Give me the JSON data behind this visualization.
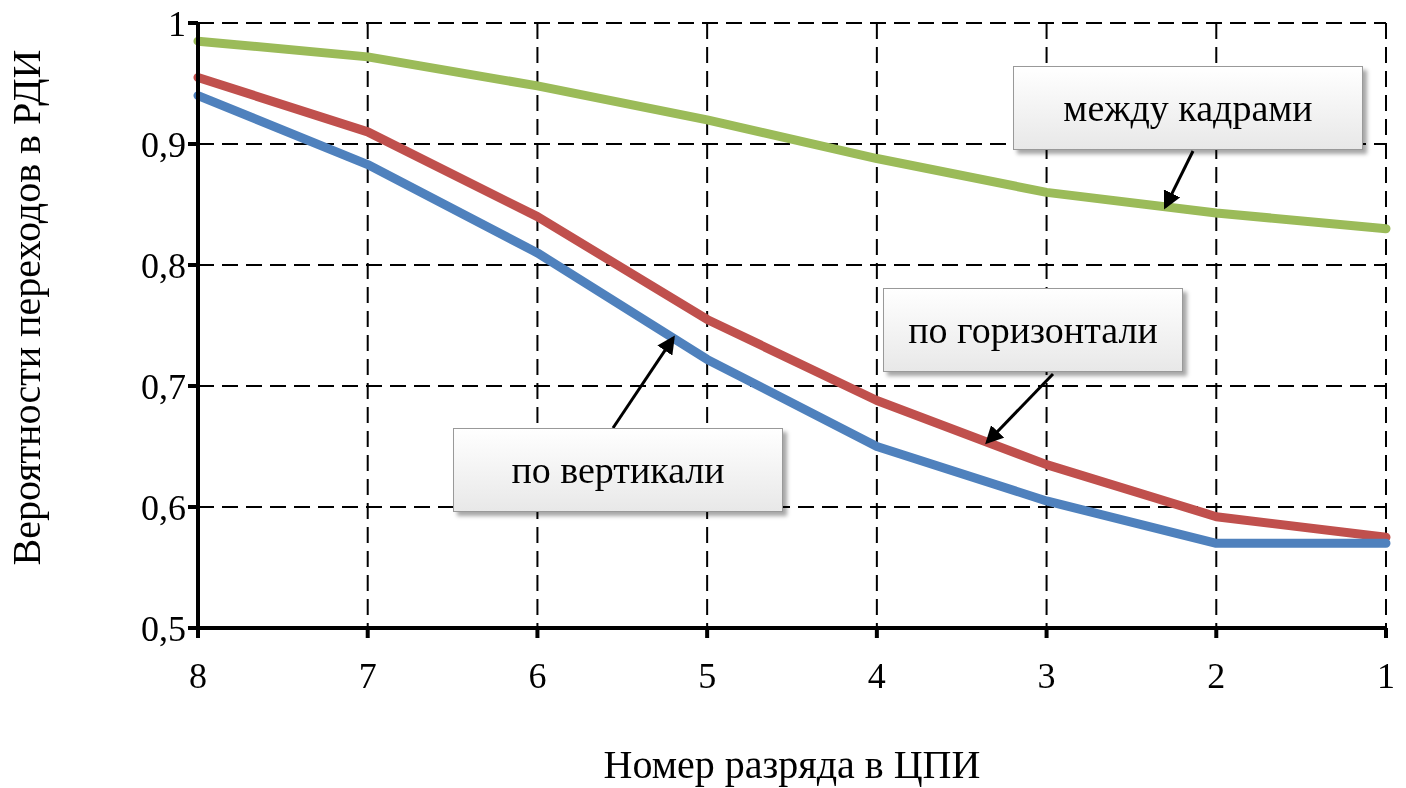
{
  "chart_data": {
    "type": "line",
    "xlabel": "Номер разряда в ЦПИ",
    "ylabel": "Вероятности переходов в РДИ",
    "categories": [
      "8",
      "7",
      "6",
      "5",
      "4",
      "3",
      "2",
      "1"
    ],
    "series": [
      {
        "name": "между кадрами",
        "color": "#9bbb59",
        "values": [
          0.985,
          0.972,
          0.948,
          0.92,
          0.888,
          0.86,
          0.843,
          0.83
        ]
      },
      {
        "name": "по горизонтали",
        "color": "#c0504d",
        "values": [
          0.955,
          0.91,
          0.84,
          0.755,
          0.688,
          0.635,
          0.592,
          0.575
        ]
      },
      {
        "name": "по вертикали",
        "color": "#4f81bd",
        "values": [
          0.94,
          0.883,
          0.81,
          0.722,
          0.65,
          0.605,
          0.57,
          0.57
        ]
      }
    ],
    "ylim": [
      0.5,
      1
    ],
    "yticks": [
      {
        "value": 0.5,
        "label": "0,5"
      },
      {
        "value": 0.6,
        "label": "0,6"
      },
      {
        "value": 0.7,
        "label": "0,7"
      },
      {
        "value": 0.8,
        "label": "0,8"
      },
      {
        "value": 0.9,
        "label": "0,9"
      },
      {
        "value": 1,
        "label": "1"
      }
    ],
    "grid": true,
    "marker": "none",
    "line_style": "solid"
  }
}
